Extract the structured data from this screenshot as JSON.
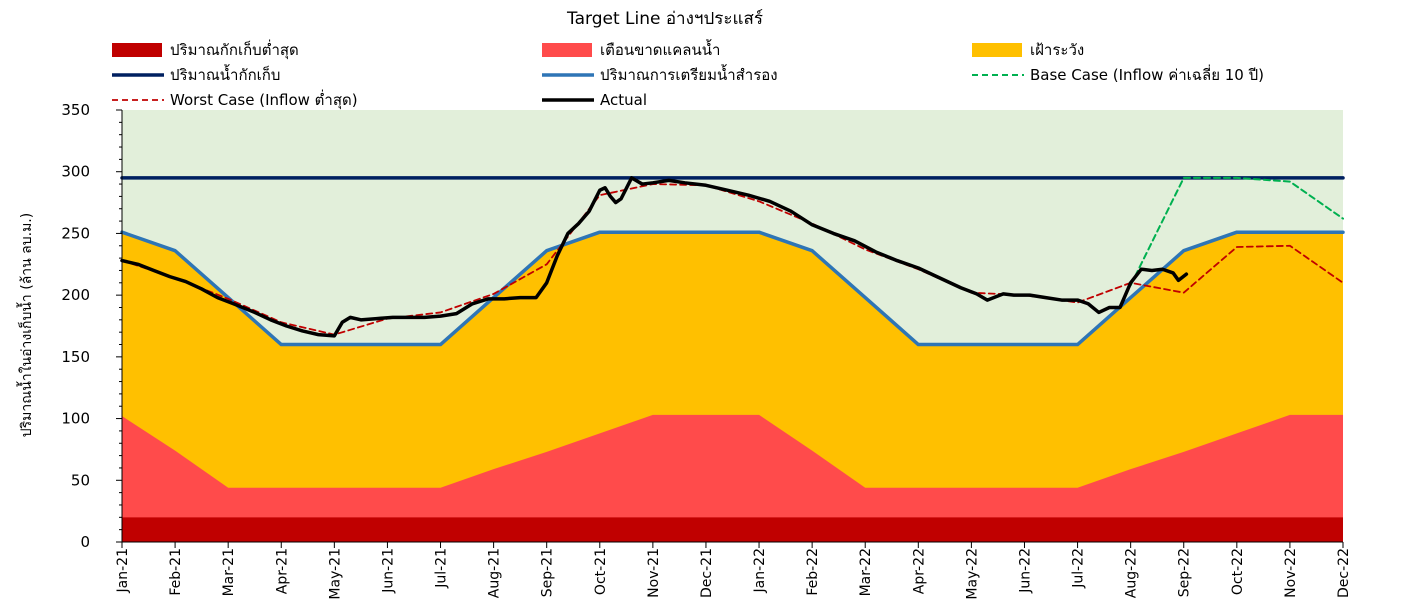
{
  "chart_data": {
    "type": "area",
    "title": "Target Line อ่างฯประแสร์",
    "ylabel": "ปริมาณน้ำในอ่างเก็บน้ำ (ล้าน ลบ.ม.)",
    "xlabel": "",
    "ylim": [
      0,
      350
    ],
    "yticks": [
      "0",
      "50",
      "100",
      "150",
      "200",
      "250",
      "300",
      "350"
    ],
    "ytick_values": [
      0,
      50,
      100,
      150,
      200,
      250,
      300,
      350
    ],
    "categories": [
      "Jan-21",
      "Feb-21",
      "Mar-21",
      "Apr-21",
      "May-21",
      "Jun-21",
      "Jul-21",
      "Aug-21",
      "Sep-21",
      "Oct-21",
      "Nov-21",
      "Dec-21",
      "Jan-22",
      "Feb-22",
      "Mar-22",
      "Apr-22",
      "May-22",
      "Jun-22",
      "Jul-22",
      "Aug-22",
      "Sep-22",
      "Oct-22",
      "Nov-22",
      "Dec-22"
    ],
    "background_color": "#e2efda",
    "legend_position": "top",
    "series": [
      {
        "key": "storage_cap",
        "name": "ปริมาณน้ำกักเก็บ",
        "kind": "line",
        "color": "#002060",
        "style": "solid",
        "x": [
          0,
          23
        ],
        "y": [
          295,
          295
        ]
      },
      {
        "key": "reserve",
        "name": "ปริมาณการเตรียมน้ำสำรอง",
        "kind": "line",
        "color": "#2e75b6",
        "style": "solid",
        "x": [
          0,
          1,
          2,
          3,
          4,
          5,
          6,
          7,
          8,
          9,
          10,
          11,
          12,
          13,
          14,
          15,
          16,
          17,
          18,
          19,
          20,
          21,
          22,
          23
        ],
        "y": [
          251,
          236,
          198,
          160,
          160,
          160,
          160,
          198,
          236,
          251,
          251,
          251,
          251,
          236,
          198,
          160,
          160,
          160,
          160,
          198,
          236,
          251,
          251,
          251
        ]
      },
      {
        "key": "caution",
        "name": "เฝ้าระวัง",
        "kind": "area",
        "color": "#ffc000",
        "x": [
          0,
          1,
          2,
          3,
          4,
          5,
          6,
          7,
          8,
          9,
          10,
          11,
          12,
          13,
          14,
          15,
          16,
          17,
          18,
          19,
          20,
          21,
          22,
          23
        ],
        "y": [
          251,
          236,
          198,
          160,
          160,
          160,
          160,
          198,
          236,
          251,
          251,
          251,
          251,
          236,
          198,
          160,
          160,
          160,
          160,
          198,
          236,
          251,
          251,
          251
        ]
      },
      {
        "key": "warning",
        "name": "เตือนขาดแคลนน้ำ",
        "kind": "area",
        "color": "#ff4b4b",
        "x": [
          0,
          1,
          2,
          3,
          4,
          5,
          6,
          7,
          8,
          9,
          10,
          11,
          12,
          13,
          14,
          15,
          16,
          17,
          18,
          19,
          20,
          21,
          22,
          23
        ],
        "y": [
          102,
          74,
          44,
          44,
          44,
          44,
          44,
          59,
          73,
          88,
          103,
          103,
          103,
          74,
          44,
          44,
          44,
          44,
          44,
          59,
          73,
          88,
          103,
          103
        ]
      },
      {
        "key": "min_storage",
        "name": "ปริมาณกักเก็บต่ำสุด",
        "kind": "area",
        "color": "#c00000",
        "x": [
          0,
          23
        ],
        "y": [
          20,
          20
        ]
      },
      {
        "key": "base_case",
        "name": "Base Case (Inflow ค่าเฉลี่ย 10 ปี)",
        "kind": "line",
        "color": "#00b050",
        "style": "dashed",
        "x": [
          19,
          20,
          21,
          22,
          23
        ],
        "y": [
          208,
          295,
          295,
          292,
          262
        ]
      },
      {
        "key": "worst_case",
        "name": "Worst Case (Inflow ต่ำสุด)",
        "kind": "line",
        "color": "#c00000",
        "style": "dashed",
        "x": [
          0,
          1,
          2,
          3,
          4,
          5,
          6,
          7,
          8,
          9,
          10,
          11,
          12,
          13,
          14,
          15,
          16,
          17,
          18,
          19,
          20,
          21,
          22,
          23
        ],
        "y": [
          228,
          214,
          197,
          178,
          168,
          181,
          186,
          201,
          225,
          281,
          290,
          289,
          276,
          258,
          237,
          221,
          202,
          200,
          194,
          210,
          202,
          239,
          240,
          210
        ]
      },
      {
        "key": "actual",
        "name": "Actual",
        "kind": "line",
        "color": "#000000",
        "style": "solid",
        "x": [
          0,
          0.3,
          0.6,
          0.9,
          1.2,
          1.5,
          1.8,
          2.1,
          2.5,
          2.8,
          3.1,
          3.4,
          3.7,
          4.0,
          4.15,
          4.3,
          4.5,
          4.8,
          5.1,
          5.4,
          5.7,
          6.0,
          6.3,
          6.6,
          6.9,
          7.2,
          7.5,
          7.8,
          8.0,
          8.2,
          8.4,
          8.6,
          8.8,
          9.0,
          9.1,
          9.2,
          9.3,
          9.4,
          9.6,
          9.8,
          10.0,
          10.3,
          10.6,
          11.0,
          11.4,
          11.8,
          12.2,
          12.6,
          13.0,
          13.4,
          13.8,
          14.2,
          14.6,
          15.0,
          15.4,
          15.8,
          16.1,
          16.3,
          16.6,
          16.8,
          17.1,
          17.4,
          17.7,
          18.0,
          18.2,
          18.4,
          18.6,
          18.8,
          19.0,
          19.2,
          19.4,
          19.6,
          19.8,
          19.9,
          20.05
        ],
        "y": [
          228,
          225,
          220,
          215,
          211,
          205,
          198,
          193,
          186,
          180,
          175,
          171,
          168,
          167,
          178,
          182,
          180,
          181,
          182,
          182,
          182,
          183,
          185,
          193,
          197,
          197,
          198,
          198,
          210,
          232,
          250,
          258,
          268,
          285,
          287,
          280,
          275,
          278,
          295,
          290,
          291,
          293,
          291,
          289,
          285,
          281,
          276,
          268,
          257,
          250,
          244,
          235,
          228,
          222,
          214,
          206,
          201,
          196,
          201,
          200,
          200,
          198,
          196,
          196,
          193,
          186,
          190,
          190,
          210,
          221,
          220,
          221,
          218,
          212,
          217
        ]
      }
    ]
  }
}
